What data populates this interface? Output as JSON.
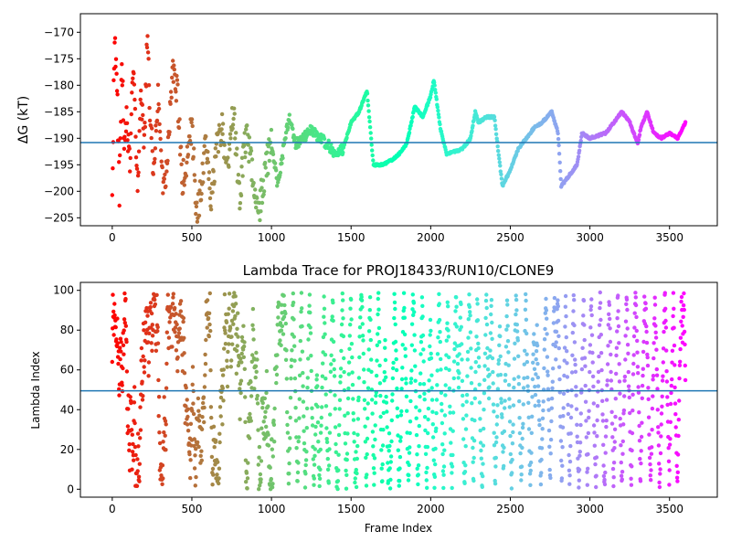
{
  "chart_data": [
    {
      "type": "scatter",
      "title": "",
      "xlabel": "",
      "ylabel": "ΔG (kT)",
      "xlim": [
        -200,
        3800
      ],
      "ylim": [
        -206.5,
        -166.5
      ],
      "xticks": [
        0,
        500,
        1000,
        1500,
        2000,
        2500,
        3000,
        3500
      ],
      "yticks": [
        -205,
        -200,
        -195,
        -190,
        -185,
        -180,
        -175,
        -170
      ],
      "colormap": "rainbow (red at frame 0 to violet at frame 3600)",
      "hline": -190.8,
      "hline_color": "#1f77b4",
      "grid": false,
      "trace_keypoints": [
        [
          0,
          -200
        ],
        [
          15,
          -170
        ],
        [
          30,
          -180
        ],
        [
          45,
          -200
        ],
        [
          60,
          -175
        ],
        [
          75,
          -190
        ],
        [
          90,
          -185
        ],
        [
          110,
          -195
        ],
        [
          130,
          -175
        ],
        [
          160,
          -200
        ],
        [
          180,
          -180
        ],
        [
          200,
          -193
        ],
        [
          220,
          -170
        ],
        [
          240,
          -187
        ],
        [
          260,
          -196
        ],
        [
          290,
          -180
        ],
        [
          320,
          -201
        ],
        [
          350,
          -192
        ],
        [
          380,
          -177
        ],
        [
          410,
          -182
        ],
        [
          440,
          -198
        ],
        [
          470,
          -194
        ],
        [
          500,
          -187
        ],
        [
          530,
          -205
        ],
        [
          560,
          -199
        ],
        [
          590,
          -190
        ],
        [
          620,
          -203
        ],
        [
          650,
          -193
        ],
        [
          690,
          -187
        ],
        [
          720,
          -197
        ],
        [
          760,
          -185
        ],
        [
          800,
          -201
        ],
        [
          840,
          -189
        ],
        [
          880,
          -196
        ],
        [
          920,
          -204
        ],
        [
          960,
          -196
        ],
        [
          1000,
          -191
        ],
        [
          1040,
          -199
        ],
        [
          1070,
          -193
        ],
        [
          1110,
          -186
        ],
        [
          1150,
          -191
        ],
        [
          1200,
          -190
        ],
        [
          1250,
          -188
        ],
        [
          1300,
          -190
        ],
        [
          1350,
          -191
        ],
        [
          1400,
          -193
        ],
        [
          1450,
          -192
        ],
        [
          1500,
          -187
        ],
        [
          1550,
          -185
        ],
        [
          1600,
          -181
        ],
        [
          1640,
          -195
        ],
        [
          1700,
          -195
        ],
        [
          1760,
          -194
        ],
        [
          1800,
          -193
        ],
        [
          1850,
          -191
        ],
        [
          1900,
          -184
        ],
        [
          1950,
          -186
        ],
        [
          2000,
          -182
        ],
        [
          2020,
          -179
        ],
        [
          2060,
          -188
        ],
        [
          2100,
          -193
        ],
        [
          2200,
          -192
        ],
        [
          2250,
          -190
        ],
        [
          2280,
          -185
        ],
        [
          2300,
          -187
        ],
        [
          2350,
          -186
        ],
        [
          2400,
          -186
        ],
        [
          2450,
          -199
        ],
        [
          2500,
          -196
        ],
        [
          2550,
          -192
        ],
        [
          2600,
          -190
        ],
        [
          2650,
          -188
        ],
        [
          2700,
          -187
        ],
        [
          2760,
          -185
        ],
        [
          2800,
          -189
        ],
        [
          2820,
          -199
        ],
        [
          2870,
          -197
        ],
        [
          2920,
          -195
        ],
        [
          2950,
          -189
        ],
        [
          3000,
          -190
        ],
        [
          3100,
          -189
        ],
        [
          3150,
          -187
        ],
        [
          3200,
          -185
        ],
        [
          3250,
          -187
        ],
        [
          3300,
          -191
        ],
        [
          3320,
          -188
        ],
        [
          3360,
          -185
        ],
        [
          3400,
          -189
        ],
        [
          3450,
          -190
        ],
        [
          3500,
          -189
        ],
        [
          3550,
          -190
        ],
        [
          3600,
          -187
        ]
      ]
    },
    {
      "type": "scatter",
      "title": "Lambda Trace for PROJ18433/RUN10/CLONE9",
      "xlabel": "Frame Index",
      "ylabel": "Lambda Index",
      "xlim": [
        -200,
        3800
      ],
      "ylim": [
        -4,
        104
      ],
      "xticks": [
        0,
        500,
        1000,
        1500,
        2000,
        2500,
        3000,
        3500
      ],
      "yticks": [
        0,
        20,
        40,
        60,
        80,
        100
      ],
      "colormap": "rainbow (red at frame 0 to violet at frame 3600)",
      "hline": 49.5,
      "hline_color": "#1f77b4",
      "grid": false,
      "frames": 3600,
      "lambda_range": [
        0,
        99
      ],
      "point_density": "dense; vertical sweeps of lambda 0-99 across all frames"
    }
  ]
}
